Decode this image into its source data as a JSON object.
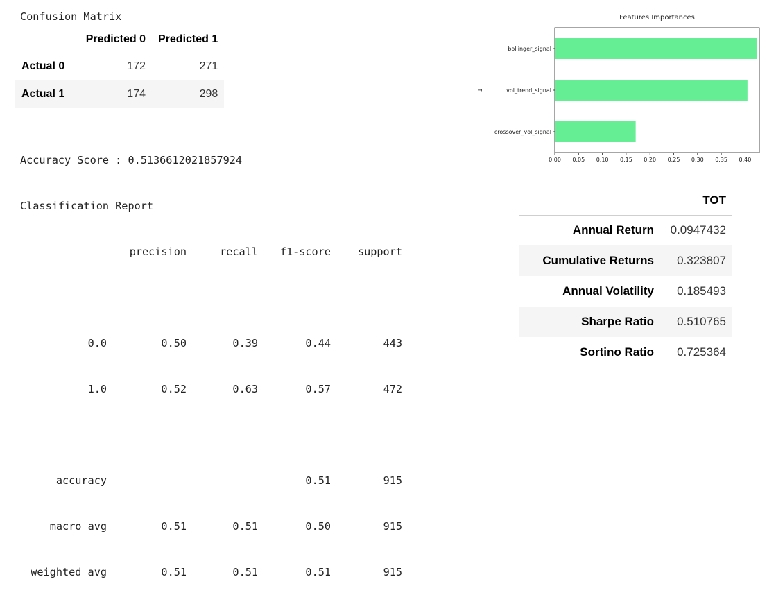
{
  "confusion_matrix": {
    "title": "Confusion Matrix",
    "columns": [
      "Predicted 0",
      "Predicted 1"
    ],
    "rows": [
      {
        "label": "Actual 0",
        "values": [
          "172",
          "271"
        ]
      },
      {
        "label": "Actual 1",
        "values": [
          "174",
          "298"
        ]
      }
    ]
  },
  "accuracy_line": "Accuracy Score : 0.5136612021857924",
  "report": {
    "title": "Classification Report",
    "headers": [
      "precision",
      "recall",
      "f1-score",
      "support"
    ],
    "class_rows": [
      {
        "label": "0.0",
        "precision": "0.50",
        "recall": "0.39",
        "f1": "0.44",
        "support": "443"
      },
      {
        "label": "1.0",
        "precision": "0.52",
        "recall": "0.63",
        "f1": "0.57",
        "support": "472"
      }
    ],
    "summary_rows": [
      {
        "label": "accuracy",
        "precision": "",
        "recall": "",
        "f1": "0.51",
        "support": "915"
      },
      {
        "label": "macro avg",
        "precision": "0.51",
        "recall": "0.51",
        "f1": "0.50",
        "support": "915"
      },
      {
        "label": "weighted avg",
        "precision": "0.51",
        "recall": "0.51",
        "f1": "0.51",
        "support": "915"
      }
    ]
  },
  "metrics": {
    "column": "TOT",
    "rows": [
      {
        "label": "Annual Return",
        "value": "0.0947432"
      },
      {
        "label": "Cumulative Returns",
        "value": "0.323807"
      },
      {
        "label": "Annual Volatility",
        "value": "0.185493"
      },
      {
        "label": "Sharpe Ratio",
        "value": "0.510765"
      },
      {
        "label": "Sortino Ratio",
        "value": "0.725364"
      }
    ]
  },
  "chart_data": {
    "type": "bar",
    "orientation": "horizontal",
    "title": "Features Importances",
    "ylabel": "1",
    "xlabel": "",
    "categories": [
      "crossover_vol_signal",
      "vol_trend_signal",
      "bollinger_signal"
    ],
    "values": [
      0.17,
      0.405,
      0.425
    ],
    "xlim": [
      0,
      0.43
    ],
    "xticks": [
      "0.00",
      "0.05",
      "0.10",
      "0.15",
      "0.20",
      "0.25",
      "0.30",
      "0.35",
      "0.40"
    ],
    "bar_color": "#66ee94",
    "grid": false,
    "legend": "none"
  }
}
